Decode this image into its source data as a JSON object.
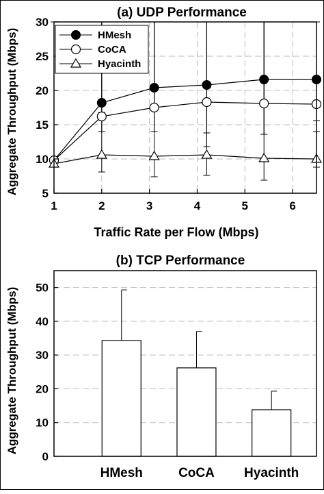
{
  "chart_data": [
    {
      "type": "line",
      "title": "(a) UDP Performance",
      "xlabel": "Traffic Rate per Flow (Mbps)",
      "ylabel": "Aggregate Throughput (Mbps)",
      "xlim": [
        1,
        6.5
      ],
      "ylim": [
        5,
        30
      ],
      "xticks": [
        1,
        2,
        3,
        4,
        5,
        6
      ],
      "yticks": [
        5,
        10,
        15,
        20,
        25,
        30
      ],
      "grid": "dashed vertical and horizontal",
      "legend": "top-left",
      "series": [
        {
          "name": "HMesh",
          "marker": "filled-circle",
          "x": [
            1,
            2,
            3.1,
            4.2,
            5.4,
            6.5
          ],
          "y": [
            9.8,
            18.2,
            20.4,
            20.8,
            21.6,
            21.6
          ],
          "err": [
            0.3,
            1.4,
            3.2,
            9,
            8,
            6
          ]
        },
        {
          "name": "CoCA",
          "marker": "open-circle",
          "x": [
            1,
            2,
            3.1,
            4.2,
            5.4,
            6.5
          ],
          "y": [
            9.8,
            16.2,
            17.5,
            18.3,
            18.1,
            18.0
          ],
          "err": [
            0.3,
            2.2,
            3.5,
            4.5,
            4.5,
            4.0
          ]
        },
        {
          "name": "Hyacinth",
          "marker": "open-triangle",
          "x": [
            1,
            2,
            3.1,
            4.2,
            5.4,
            6.5
          ],
          "y": [
            9.3,
            10.6,
            10.4,
            10.6,
            10.1,
            10.0
          ],
          "err": [
            0.5,
            2.5,
            3.0,
            3.0,
            3.2,
            1.2
          ]
        }
      ]
    },
    {
      "type": "bar",
      "title": "(b) TCP Performance",
      "xlabel": "",
      "ylabel": "Aggregate Throughput (Mbps)",
      "ylim": [
        0,
        55
      ],
      "yticks": [
        0,
        10,
        20,
        30,
        40,
        50
      ],
      "grid": "dashed horizontal",
      "categories": [
        "HMesh",
        "CoCA",
        "Hyacinth"
      ],
      "values": [
        34.3,
        26.2,
        13.8
      ],
      "err": [
        15.0,
        10.8,
        5.5
      ]
    }
  ]
}
